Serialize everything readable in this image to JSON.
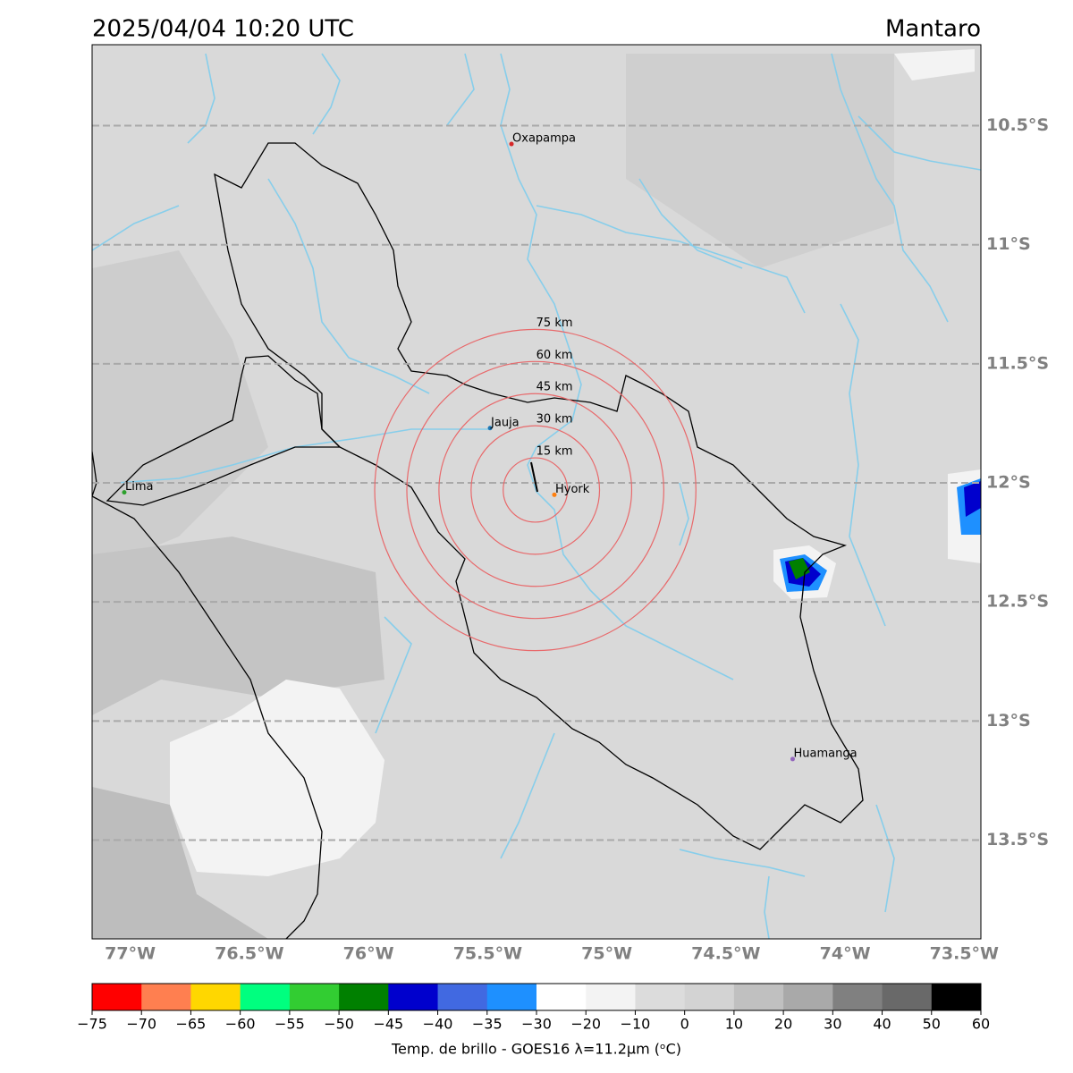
{
  "map": {
    "title": "2025/04/04 10:20 UTC",
    "region": "Mantaro",
    "xlim": [
      -77.16,
      -73.43
    ],
    "ylim": [
      -13.915,
      -10.16
    ],
    "xticks": [
      {
        "value": -77,
        "label": "77°W"
      },
      {
        "value": -76.5,
        "label": "76.5°W"
      },
      {
        "value": -76,
        "label": "76°W"
      },
      {
        "value": -75.5,
        "label": "75.5°W"
      },
      {
        "value": -75,
        "label": "75°W"
      },
      {
        "value": -74.5,
        "label": "74.5°W"
      },
      {
        "value": -74,
        "label": "74°W"
      },
      {
        "value": -73.5,
        "label": "73.5°W"
      }
    ],
    "yticks": [
      {
        "value": -10.5,
        "label": "10.5°S"
      },
      {
        "value": -11,
        "label": "11°S"
      },
      {
        "value": -11.5,
        "label": "11.5°S"
      },
      {
        "value": -12,
        "label": "12°S"
      },
      {
        "value": -12.5,
        "label": "12.5°S"
      },
      {
        "value": -13,
        "label": "13°S"
      },
      {
        "value": -13.5,
        "label": "13.5°S"
      }
    ],
    "rings": {
      "center_lon": -75.3,
      "center_lat": -12.03,
      "color": "#e8696b",
      "radii": [
        {
          "value": 15,
          "label": "15 km"
        },
        {
          "value": 30,
          "label": "30 km"
        },
        {
          "value": 45,
          "label": "45 km"
        },
        {
          "value": 60,
          "label": "60 km"
        },
        {
          "value": 75,
          "label": "75 km"
        }
      ]
    },
    "cities": [
      {
        "name": "Oxapampa",
        "lon": -75.4,
        "lat": -10.577,
        "color": "#d62728"
      },
      {
        "name": "Jauja",
        "lon": -75.49,
        "lat": -11.77,
        "color": "#1f77b4"
      },
      {
        "name": "Lima",
        "lon": -77.025,
        "lat": -12.04,
        "color": "#2ca02c"
      },
      {
        "name": "Hyork",
        "lon": -75.22,
        "lat": -12.05,
        "color": "#ff7f0e"
      },
      {
        "name": "Huamanga",
        "lon": -74.22,
        "lat": -13.16,
        "color": "#9467bd"
      }
    ],
    "colorbar": {
      "label": "Temp. de brillo - GOES16 λ=11.2μm (ᵒC)",
      "ticks": [
        {
          "value": -75,
          "label": "−75"
        },
        {
          "value": -70,
          "label": "−70"
        },
        {
          "value": -65,
          "label": "−65"
        },
        {
          "value": -60,
          "label": "−60"
        },
        {
          "value": -55,
          "label": "−55"
        },
        {
          "value": -50,
          "label": "−50"
        },
        {
          "value": -45,
          "label": "−45"
        },
        {
          "value": -40,
          "label": "−40"
        },
        {
          "value": -35,
          "label": "−35"
        },
        {
          "value": -30,
          "label": "−30"
        },
        {
          "value": -20,
          "label": "−20"
        },
        {
          "value": -10,
          "label": "−10"
        },
        0,
        10,
        20,
        30,
        40,
        50,
        60
      ],
      "colors": [
        "#ff0000",
        "#ff7f50",
        "#ffd700",
        "#00ff7f",
        "#32cd32",
        "#008000",
        "#0000cd",
        "#4169e1",
        "#1e90ff",
        "#ffffff",
        "#f3f3f3",
        "#dcdcdc",
        "#d3d3d3",
        "#c0c0c0",
        "#a9a9a9",
        "#808080",
        "#696969",
        "#000000"
      ]
    }
  }
}
